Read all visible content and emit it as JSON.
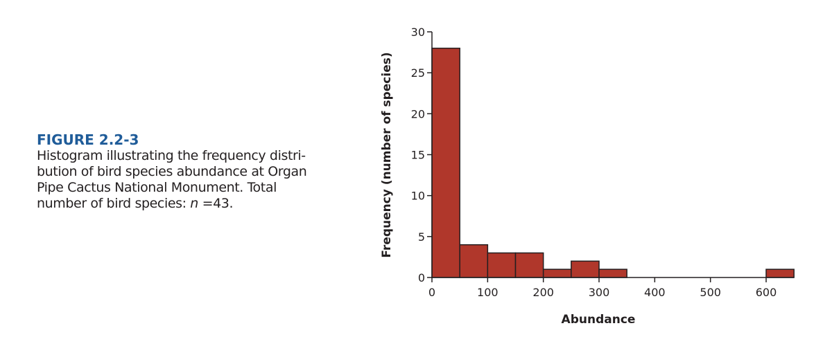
{
  "caption": {
    "figure_label": "FIGURE 2.2-3",
    "lines": [
      "Histogram illustrating the frequency distri-",
      "bution of bird species abundance at Organ",
      "Pipe Cactus National Monument. Total"
    ],
    "last_line_prefix": "number of bird species: ",
    "last_line_var": "n",
    "last_line_suffix": " =43."
  },
  "chart_data": {
    "type": "bar",
    "subtype": "histogram",
    "title": "",
    "xlabel": "Abundance",
    "ylabel": "Frequency (number of species)",
    "xlim": [
      0,
      650
    ],
    "ylim": [
      0,
      30
    ],
    "xticks": [
      0,
      100,
      200,
      300,
      400,
      500,
      600
    ],
    "yticks": [
      0,
      5,
      10,
      15,
      20,
      25,
      30
    ],
    "bin_width": 50,
    "bins": [
      {
        "start": 0,
        "end": 50,
        "count": 28
      },
      {
        "start": 50,
        "end": 100,
        "count": 4
      },
      {
        "start": 100,
        "end": 150,
        "count": 3
      },
      {
        "start": 150,
        "end": 200,
        "count": 3
      },
      {
        "start": 200,
        "end": 250,
        "count": 1
      },
      {
        "start": 250,
        "end": 300,
        "count": 2
      },
      {
        "start": 300,
        "end": 350,
        "count": 1
      },
      {
        "start": 350,
        "end": 400,
        "count": 0
      },
      {
        "start": 400,
        "end": 450,
        "count": 0
      },
      {
        "start": 450,
        "end": 500,
        "count": 0
      },
      {
        "start": 500,
        "end": 550,
        "count": 0
      },
      {
        "start": 550,
        "end": 600,
        "count": 0
      },
      {
        "start": 600,
        "end": 650,
        "count": 1
      }
    ],
    "grid": false,
    "colors": {
      "bar": "#b0372b",
      "edge": "#231f20",
      "title": "#1f5c99"
    }
  }
}
